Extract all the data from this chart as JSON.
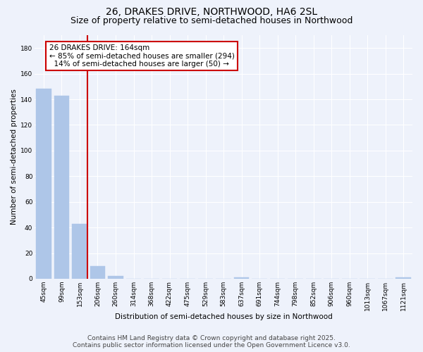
{
  "title_line1": "26, DRAKES DRIVE, NORTHWOOD, HA6 2SL",
  "title_line2": "Size of property relative to semi-detached houses in Northwood",
  "xlabel": "Distribution of semi-detached houses by size in Northwood",
  "ylabel": "Number of semi-detached properties",
  "categories": [
    "45sqm",
    "99sqm",
    "153sqm",
    "206sqm",
    "260sqm",
    "314sqm",
    "368sqm",
    "422sqm",
    "475sqm",
    "529sqm",
    "583sqm",
    "637sqm",
    "691sqm",
    "744sqm",
    "798sqm",
    "852sqm",
    "906sqm",
    "960sqm",
    "1013sqm",
    "1067sqm",
    "1121sqm"
  ],
  "values": [
    148,
    143,
    43,
    10,
    2,
    0,
    0,
    0,
    0,
    0,
    0,
    1,
    0,
    0,
    0,
    0,
    0,
    0,
    0,
    0,
    1
  ],
  "bar_color": "#aec6e8",
  "bar_edgecolor": "#aec6e8",
  "vline_color": "#cc0000",
  "annotation_text": "26 DRAKES DRIVE: 164sqm\n← 85% of semi-detached houses are smaller (294)\n  14% of semi-detached houses are larger (50) →",
  "annotation_box_color": "#ffffff",
  "annotation_box_edgecolor": "#cc0000",
  "ylim": [
    0,
    190
  ],
  "yticks": [
    0,
    20,
    40,
    60,
    80,
    100,
    120,
    140,
    160,
    180
  ],
  "background_color": "#eef2fb",
  "grid_color": "#ffffff",
  "footer_line1": "Contains HM Land Registry data © Crown copyright and database right 2025.",
  "footer_line2": "Contains public sector information licensed under the Open Government Licence v3.0.",
  "title_fontsize": 10,
  "subtitle_fontsize": 9,
  "axis_label_fontsize": 7.5,
  "tick_fontsize": 6.5,
  "annotation_fontsize": 7.5,
  "footer_fontsize": 6.5
}
